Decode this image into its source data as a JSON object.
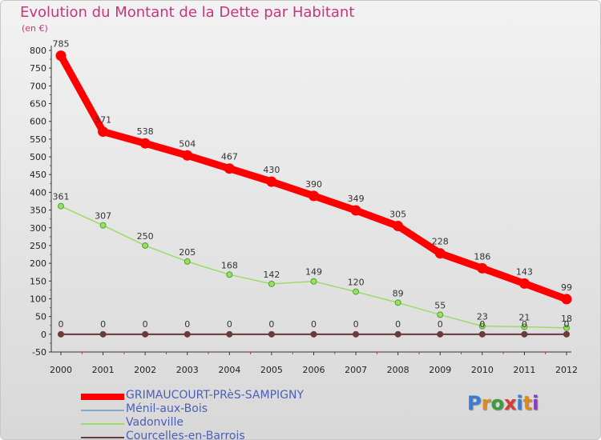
{
  "title": "Evolution du Montant de la Dette par Habitant",
  "unit_label": "(en €)",
  "logo_text": "Proxiti",
  "chart_data": {
    "type": "line",
    "title": "Evolution du Montant de la Dette par Habitant",
    "ylabel": "(en €)",
    "xlabel": "",
    "ylim": [
      -50,
      800
    ],
    "y_ticks": [
      -50,
      0,
      50,
      100,
      150,
      200,
      250,
      300,
      350,
      400,
      450,
      500,
      550,
      600,
      650,
      700,
      750,
      800
    ],
    "x": [
      "2000",
      "2001",
      "2002",
      "2003",
      "2004",
      "2005",
      "2006",
      "2007",
      "2008",
      "2009",
      "2010",
      "2011",
      "2012"
    ],
    "grid": false,
    "legend_position": "bottom",
    "series": [
      {
        "name": "GRIMAUCOURT-PRèS-SAMPIGNY",
        "color": "#ff0000",
        "values": [
          785,
          571,
          538,
          504,
          467,
          430,
          390,
          349,
          305,
          228,
          186,
          143,
          99
        ]
      },
      {
        "name": "Ménil-aux-Bois",
        "color": "#87a9c9",
        "values": [
          0,
          0,
          0,
          0,
          0,
          0,
          0,
          0,
          0,
          0,
          0,
          0,
          0
        ]
      },
      {
        "name": "Vadonville",
        "color": "#99dd66",
        "values": [
          361,
          307,
          250,
          205,
          168,
          142,
          149,
          120,
          89,
          55,
          23,
          21,
          18
        ]
      },
      {
        "name": "Courcelles-en-Barrois",
        "color": "#6b3a3a",
        "values": [
          0,
          0,
          0,
          0,
          0,
          0,
          0,
          0,
          0,
          0,
          0,
          0,
          0
        ]
      }
    ]
  }
}
